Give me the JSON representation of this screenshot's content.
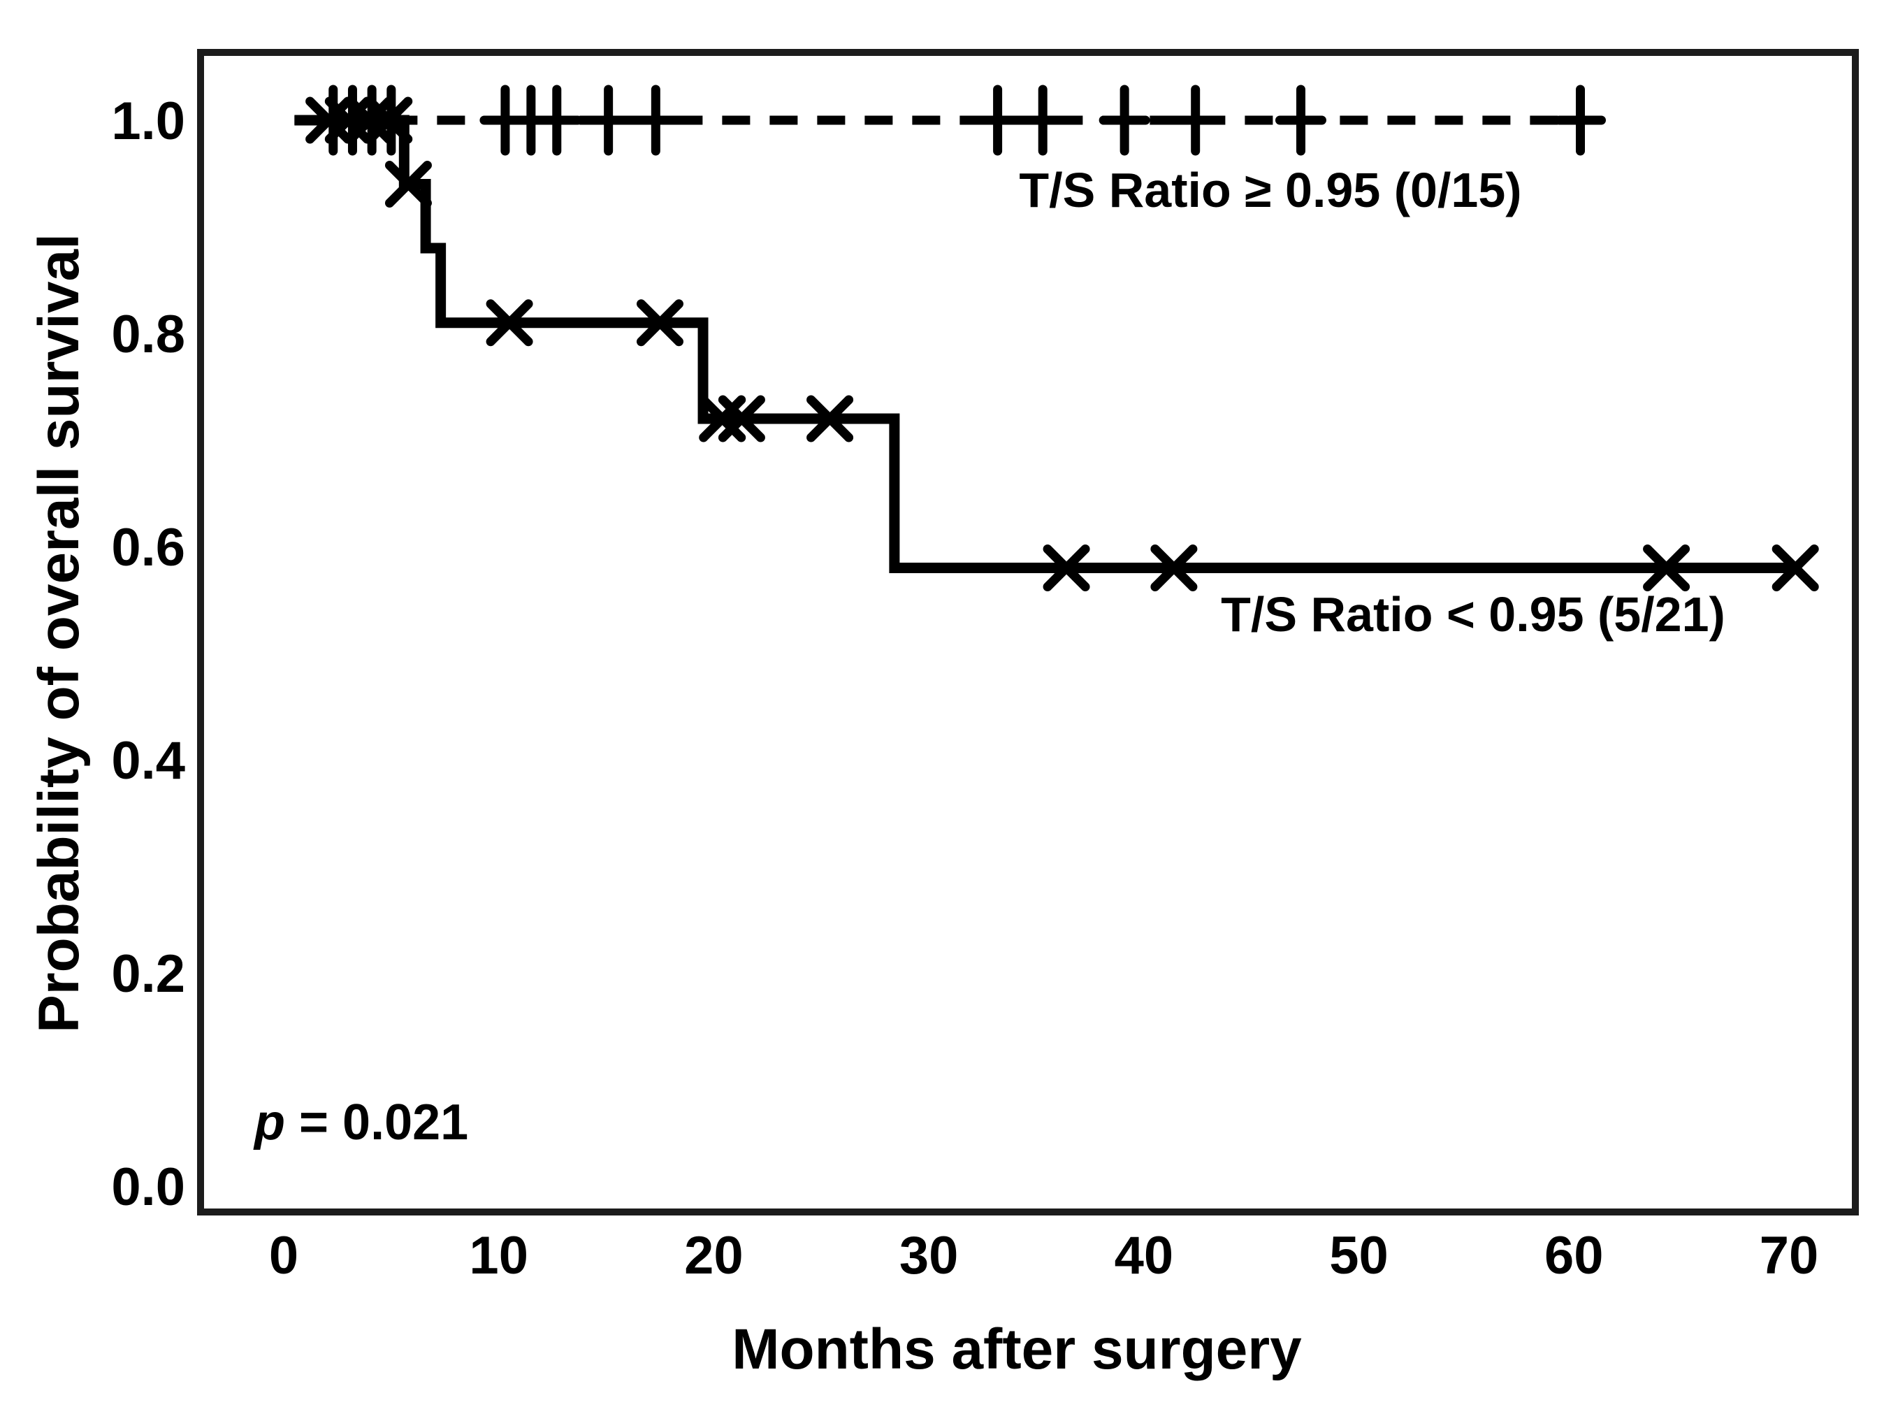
{
  "figure": {
    "background": "#ffffff",
    "ink_color": "#000000",
    "frame_color": "#1c1c1c"
  },
  "stats": {
    "p_symbol": "p",
    "p_rest": " = 0.021"
  },
  "chart_data": {
    "type": "line",
    "subtype": "kaplan-meier-step",
    "title": "",
    "xlabel": "Months after surgery",
    "ylabel": "Probability of overall survival",
    "xlim": [
      0,
      70
    ],
    "ylim": [
      0.0,
      1.0
    ],
    "xticks": [
      0,
      10,
      20,
      30,
      40,
      50,
      60,
      70
    ],
    "yticks": [
      1.0,
      0.8,
      0.6,
      0.4,
      0.2,
      0.0
    ],
    "grid": false,
    "legend_position": "inline-annotations",
    "p_value": 0.021,
    "series": [
      {
        "name": "T/S Ratio ≥ 0.95 (0/15)",
        "line_style": "dashed",
        "color": "#000000",
        "censor_marker": "plus",
        "n_total": 15,
        "n_events": 0,
        "events_label": "0/15",
        "points": [
          [
            0.5,
            1.0
          ],
          [
            61.2,
            1.0
          ]
        ],
        "censors": [
          [
            2.3,
            1.0
          ],
          [
            3.2,
            1.0
          ],
          [
            4.1,
            1.0
          ],
          [
            5.0,
            1.0
          ],
          [
            10.3,
            1.0
          ],
          [
            11.5,
            1.0
          ],
          [
            12.7,
            1.0
          ],
          [
            15.1,
            1.0
          ],
          [
            17.3,
            1.0
          ],
          [
            33.2,
            1.0
          ],
          [
            35.3,
            1.0
          ],
          [
            39.1,
            1.0
          ],
          [
            42.4,
            1.0
          ],
          [
            47.3,
            1.0
          ],
          [
            60.3,
            1.0
          ]
        ]
      },
      {
        "name": "T/S Ratio < 0.95 (5/21)",
        "line_style": "solid",
        "color": "#000000",
        "censor_marker": "x",
        "n_total": 21,
        "n_events": 5,
        "events_label": "5/21",
        "event_times_months": [
          5.6,
          6.6,
          7.3,
          19.5,
          28.4
        ],
        "step_levels": [
          1.0,
          0.94,
          0.88,
          0.81,
          0.72,
          0.58
        ],
        "points": [
          [
            0.5,
            1.0
          ],
          [
            5.6,
            1.0
          ],
          [
            5.6,
            0.94
          ],
          [
            6.6,
            0.94
          ],
          [
            6.6,
            0.88
          ],
          [
            7.3,
            0.88
          ],
          [
            7.3,
            0.81
          ],
          [
            19.5,
            0.81
          ],
          [
            19.5,
            0.72
          ],
          [
            28.4,
            0.72
          ],
          [
            28.4,
            0.58
          ],
          [
            70.4,
            0.58
          ]
        ],
        "censors": [
          [
            2.1,
            1.0
          ],
          [
            3.0,
            1.0
          ],
          [
            4.0,
            1.0
          ],
          [
            4.9,
            1.0
          ],
          [
            5.8,
            0.94
          ],
          [
            10.5,
            0.81
          ],
          [
            17.5,
            0.81
          ],
          [
            20.4,
            0.72
          ],
          [
            21.3,
            0.72
          ],
          [
            25.4,
            0.72
          ],
          [
            36.4,
            0.58
          ],
          [
            41.4,
            0.58
          ],
          [
            64.3,
            0.58
          ],
          [
            70.3,
            0.58
          ]
        ]
      }
    ]
  }
}
